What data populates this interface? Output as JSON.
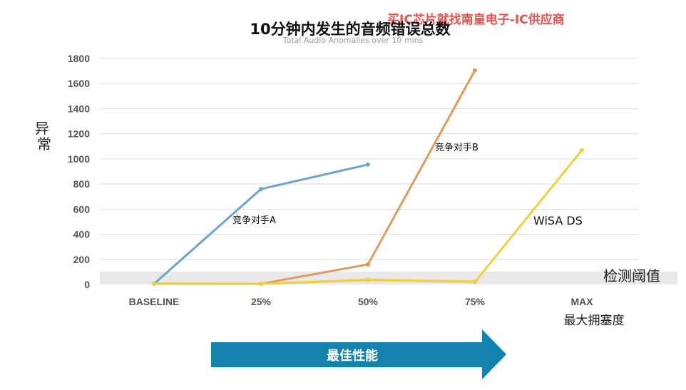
{
  "chart_data": {
    "type": "line",
    "title": "10分钟内发生的音频错误总数",
    "subtitle": "Total Audio Anomalies over 10 mins",
    "watermark": "买IC芯片就找南皇电子-IC供应商",
    "ylabel": "异常",
    "xlabel": "最大拥塞度",
    "threshold_label": "检测阈值",
    "threshold_value": 100,
    "arrow_label": "最佳性能",
    "categories": [
      "BASELINE",
      "25%",
      "50%",
      "75%",
      "MAX"
    ],
    "y_ticks": [
      "0",
      "200",
      "400",
      "600",
      "800",
      "1000",
      "1200",
      "1400",
      "1600",
      "1800"
    ],
    "ylim": [
      0,
      1800
    ],
    "grid": true,
    "series": [
      {
        "name": "竞争对手A",
        "color": "#6fa5cc",
        "values": [
          5,
          760,
          955,
          null,
          null
        ]
      },
      {
        "name": "竞争对手B",
        "color": "#e09b5e",
        "values": [
          5,
          5,
          160,
          1705,
          null
        ]
      },
      {
        "name": "WiSA DS",
        "color": "#ecd23e",
        "values": [
          5,
          5,
          35,
          20,
          1070
        ]
      },
      {
        "name": "",
        "color": "#f2d18a",
        "values": [
          10,
          5,
          40,
          25,
          null
        ]
      }
    ]
  }
}
